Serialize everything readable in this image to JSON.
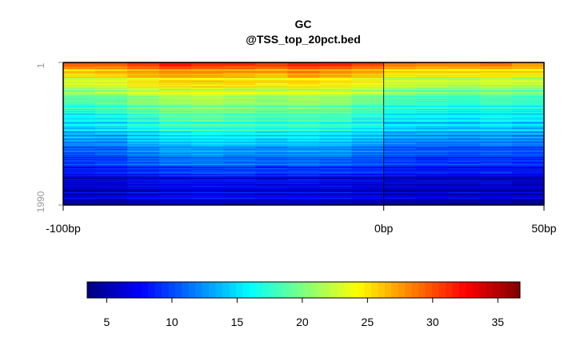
{
  "chart_data": {
    "type": "heatmap",
    "title": "GC",
    "subtitle": "@TSS_top_20pct.bed",
    "x_ticks": [
      {
        "label": "-100bp",
        "value": -100
      },
      {
        "label": "0bp",
        "value": 0
      },
      {
        "label": "50bp",
        "value": 50
      }
    ],
    "xlim": [
      -100,
      50
    ],
    "y_ticks": [
      {
        "label": "1",
        "value": 1
      },
      {
        "label": "1990",
        "value": 1990
      }
    ],
    "ylim": [
      1,
      1990
    ],
    "reference_line_x": 0,
    "colorbar": {
      "range": [
        3.5,
        36.7
      ],
      "ticks": [
        5,
        10,
        15,
        20,
        25,
        30,
        35
      ],
      "colormap": [
        "#00007f",
        "#0000ff",
        "#007fff",
        "#00ffff",
        "#7fff7f",
        "#ffff00",
        "#ff7f00",
        "#ff0000",
        "#7f0000"
      ]
    },
    "column_centers": [
      -95,
      -85,
      -75,
      -65,
      -55,
      -45,
      -35,
      -25,
      -15,
      -5,
      5,
      15,
      25,
      35,
      45
    ],
    "row_band_means": [
      {
        "rows": "1-100",
        "values": [
          31.5,
          31.2,
          32.5,
          33.8,
          33.2,
          33.0,
          32.4,
          33.4,
          33.0,
          32.0,
          30.5,
          30.0,
          29.8,
          30.3,
          29.5
        ]
      },
      {
        "rows": "100-250",
        "values": [
          26.5,
          26.8,
          27.5,
          28.3,
          28.0,
          28.0,
          27.6,
          28.6,
          28.2,
          27.5,
          26.0,
          25.8,
          25.7,
          26.0,
          25.5
        ]
      },
      {
        "rows": "250-450",
        "values": [
          23.0,
          23.2,
          24.4,
          25.0,
          25.2,
          25.0,
          24.6,
          25.2,
          24.8,
          24.0,
          22.6,
          22.4,
          22.2,
          22.6,
          22.1
        ]
      },
      {
        "rows": "450-700",
        "values": [
          19.8,
          20.2,
          21.5,
          22.3,
          22.4,
          22.2,
          21.6,
          22.0,
          21.7,
          20.7,
          19.3,
          19.1,
          18.9,
          19.2,
          18.8
        ]
      },
      {
        "rows": "700-1000",
        "values": [
          16.6,
          16.9,
          18.3,
          19.3,
          19.6,
          19.2,
          18.6,
          19.0,
          18.7,
          17.7,
          16.3,
          16.1,
          15.9,
          16.3,
          15.9
        ]
      },
      {
        "rows": "1000-1300",
        "values": [
          13.2,
          13.4,
          14.7,
          15.5,
          15.8,
          15.6,
          15.2,
          15.5,
          15.2,
          14.2,
          13.0,
          12.8,
          12.6,
          13.0,
          12.5
        ]
      },
      {
        "rows": "1300-1600",
        "values": [
          10.0,
          10.2,
          11.3,
          11.9,
          12.1,
          11.9,
          11.5,
          11.8,
          11.5,
          10.9,
          10.0,
          9.8,
          9.6,
          9.9,
          9.5
        ]
      },
      {
        "rows": "1600-1990",
        "values": [
          6.2,
          6.3,
          7.0,
          7.4,
          7.5,
          7.4,
          7.2,
          7.3,
          7.1,
          6.8,
          6.3,
          6.2,
          6.1,
          6.2,
          6.0
        ]
      }
    ],
    "row_band_breaks": [
      1,
      100,
      250,
      450,
      700,
      1000,
      1300,
      1600,
      1990
    ]
  }
}
